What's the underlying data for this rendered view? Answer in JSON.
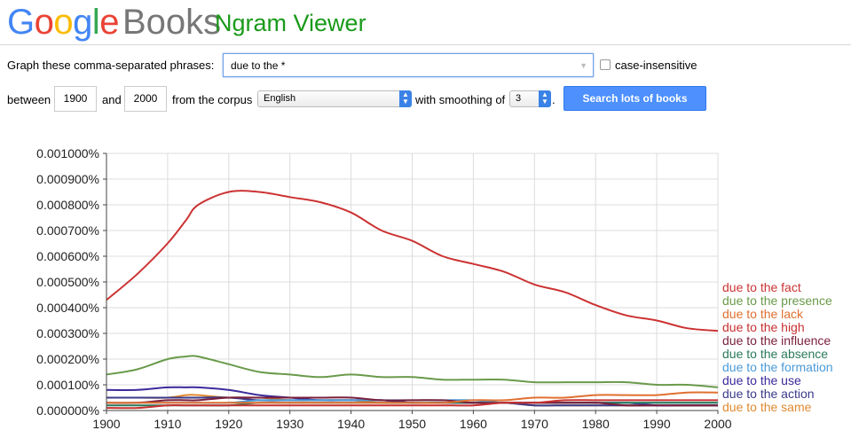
{
  "header": {
    "logo_letters": [
      {
        "ch": "G",
        "color": "#4285f4"
      },
      {
        "ch": "o",
        "color": "#ea4335"
      },
      {
        "ch": "o",
        "color": "#fbbc05"
      },
      {
        "ch": "g",
        "color": "#4285f4"
      },
      {
        "ch": "l",
        "color": "#34a853"
      },
      {
        "ch": "e",
        "color": "#ea4335"
      }
    ],
    "books": "Books",
    "app_title": "Ngram Viewer"
  },
  "controls": {
    "phrase_label": "Graph these comma-separated phrases:",
    "query_value": "due to the *",
    "case_insensitive_label": "case-insensitive",
    "between_label": "between",
    "start_year": "1900",
    "and_label": "and",
    "end_year": "2000",
    "corpus_label": "from the corpus",
    "corpus_value": "English",
    "smoothing_label": "with smoothing of",
    "smoothing_value": "3",
    "period": ".",
    "search_button": "Search lots of books"
  },
  "chart_data": {
    "type": "line",
    "xlim": [
      1900,
      2000
    ],
    "ylim": [
      0,
      1e-05
    ],
    "grid": true,
    "legend_placement": "right",
    "x_ticks": [
      "1900",
      "1910",
      "1920",
      "1930",
      "1940",
      "1950",
      "1960",
      "1970",
      "1980",
      "1990",
      "2000"
    ],
    "y_ticks": [
      "0.000000%",
      "0.000100%",
      "0.000200%",
      "0.000300%",
      "0.000400%",
      "0.000500%",
      "0.000600%",
      "0.000700%",
      "0.000800%",
      "0.000900%",
      "0.001000%"
    ],
    "x": [
      1900,
      1905,
      1910,
      1913,
      1915,
      1920,
      1925,
      1930,
      1935,
      1940,
      1945,
      1950,
      1955,
      1960,
      1965,
      1970,
      1975,
      1980,
      1985,
      1990,
      1995,
      2000
    ],
    "series": [
      {
        "name": "due to the fact",
        "color": "#cc3333",
        "values": [
          4.3e-06,
          5.3e-06,
          6.5e-06,
          7.4e-06,
          8e-06,
          8.5e-06,
          8.5e-06,
          8.3e-06,
          8.1e-06,
          7.7e-06,
          7e-06,
          6.6e-06,
          6e-06,
          5.7e-06,
          5.4e-06,
          4.9e-06,
          4.6e-06,
          4.1e-06,
          3.7e-06,
          3.5e-06,
          3.2e-06,
          3.1e-06
        ]
      },
      {
        "name": "due to the presence",
        "color": "#6a9a4a",
        "values": [
          1.4e-06,
          1.6e-06,
          2e-06,
          2.1e-06,
          2.1e-06,
          1.8e-06,
          1.5e-06,
          1.4e-06,
          1.3e-06,
          1.4e-06,
          1.3e-06,
          1.3e-06,
          1.2e-06,
          1.2e-06,
          1.2e-06,
          1.1e-06,
          1.1e-06,
          1.1e-06,
          1.1e-06,
          1e-06,
          1e-06,
          9e-07
        ]
      },
      {
        "name": "due to the lack",
        "color": "#e07030",
        "values": [
          3e-07,
          3e-07,
          3e-07,
          3e-07,
          3e-07,
          3e-07,
          3e-07,
          3e-07,
          3e-07,
          3e-07,
          3e-07,
          3e-07,
          3e-07,
          4e-07,
          4e-07,
          5e-07,
          5e-07,
          6e-07,
          6e-07,
          6e-07,
          7e-07,
          7e-07
        ]
      },
      {
        "name": "due to the high",
        "color": "#c83030",
        "values": [
          1e-07,
          1e-07,
          2e-07,
          2e-07,
          2e-07,
          2e-07,
          2e-07,
          2e-07,
          2e-07,
          2e-07,
          2e-07,
          2e-07,
          2e-07,
          2e-07,
          3e-07,
          3e-07,
          4e-07,
          4e-07,
          4e-07,
          4e-07,
          4e-07,
          4e-07
        ]
      },
      {
        "name": "due to the influence",
        "color": "#7a1e3a",
        "values": [
          3e-07,
          3e-07,
          4e-07,
          4e-07,
          4e-07,
          5e-07,
          5e-07,
          5e-07,
          5e-07,
          5e-07,
          4e-07,
          4e-07,
          4e-07,
          3e-07,
          3e-07,
          3e-07,
          3e-07,
          3e-07,
          2e-07,
          2e-07,
          2e-07,
          2e-07
        ]
      },
      {
        "name": "due to the absence",
        "color": "#2a7a5a",
        "values": [
          2e-07,
          2e-07,
          2e-07,
          2e-07,
          2e-07,
          2e-07,
          3e-07,
          3e-07,
          3e-07,
          3e-07,
          3e-07,
          3e-07,
          3e-07,
          3e-07,
          3e-07,
          3e-07,
          3e-07,
          3e-07,
          3e-07,
          3e-07,
          3e-07,
          3e-07
        ]
      },
      {
        "name": "due to the formation",
        "color": "#4a9ad8",
        "values": [
          3e-07,
          3e-07,
          3e-07,
          3e-07,
          3e-07,
          3e-07,
          4e-07,
          4e-07,
          4e-07,
          4e-07,
          4e-07,
          4e-07,
          4e-07,
          4e-07,
          3e-07,
          3e-07,
          3e-07,
          3e-07,
          3e-07,
          3e-07,
          3e-07,
          3e-07
        ]
      },
      {
        "name": "due to the use",
        "color": "#3a2a9a",
        "values": [
          8e-07,
          8e-07,
          9e-07,
          9e-07,
          9e-07,
          8e-07,
          6e-07,
          5e-07,
          4e-07,
          4e-07,
          4e-07,
          3e-07,
          3e-07,
          3e-07,
          3e-07,
          3e-07,
          3e-07,
          3e-07,
          3e-07,
          2e-07,
          2e-07,
          2e-07
        ]
      },
      {
        "name": "due to the action",
        "color": "#3a3a8a",
        "values": [
          5e-07,
          5e-07,
          5e-07,
          5e-07,
          5e-07,
          5e-07,
          4e-07,
          4e-07,
          4e-07,
          4e-07,
          4e-07,
          3e-07,
          3e-07,
          3e-07,
          3e-07,
          2e-07,
          2e-07,
          2e-07,
          2e-07,
          2e-07,
          2e-07,
          2e-07
        ]
      },
      {
        "name": "due to the same",
        "color": "#e08a30",
        "values": [
          5e-07,
          5e-07,
          5e-07,
          6e-07,
          6e-07,
          5e-07,
          5e-07,
          4e-07,
          4e-07,
          4e-07,
          3e-07,
          3e-07,
          3e-07,
          3e-07,
          3e-07,
          2e-07,
          2e-07,
          2e-07,
          2e-07,
          2e-07,
          2e-07,
          2e-07
        ]
      }
    ]
  }
}
